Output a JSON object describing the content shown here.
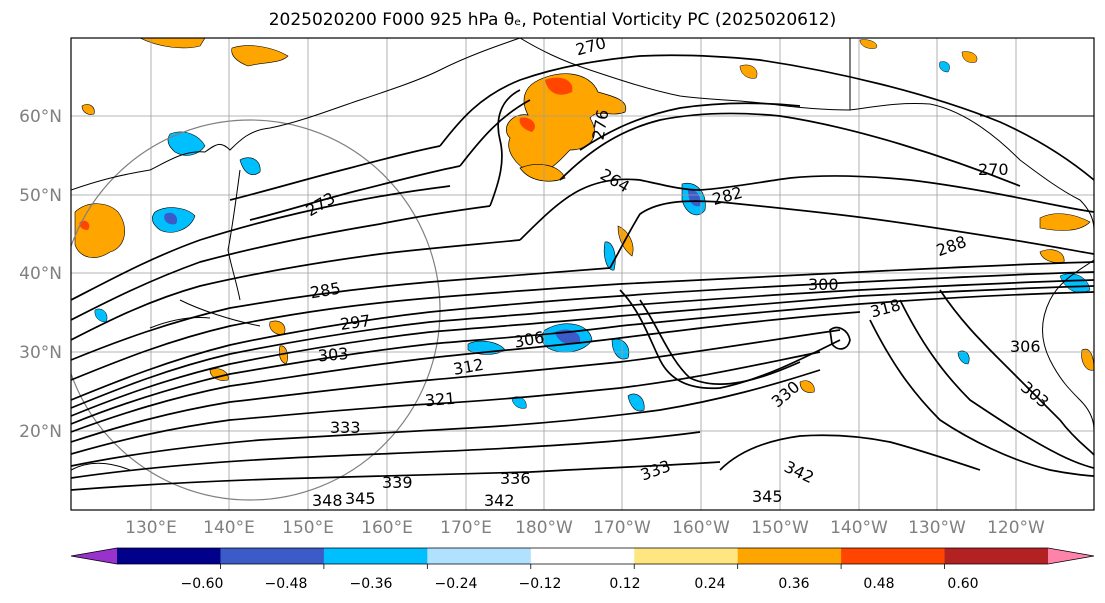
{
  "title": "2025020200 F000 925 hPa θₑ, Potential Vorticity PC (2025020612)",
  "lat_labels": [
    "20°N",
    "30°N",
    "40°N",
    "50°N",
    "60°N"
  ],
  "lon_labels": [
    "130°E",
    "140°E",
    "150°E",
    "160°E",
    "170°E",
    "180°W",
    "170°W",
    "160°W",
    "150°W",
    "140°W",
    "130°W",
    "120°W"
  ],
  "colorbar": {
    "colors": [
      "#9932cc",
      "#00008b",
      "#3a5bc8",
      "#00bfff",
      "#b0e2ff",
      "#ffffff",
      "#ffe680",
      "#ffa500",
      "#ff4500",
      "#b22222",
      "#ff82ab"
    ],
    "tick_labels": [
      "−0.60",
      "−0.48",
      "−0.36",
      "−0.24",
      "−0.12",
      "0.12",
      "0.24",
      "0.36",
      "0.48",
      "0.60"
    ]
  },
  "contour_labels": [
    "273",
    "270",
    "276",
    "264",
    "282",
    "270",
    "288",
    "285",
    "297",
    "300",
    "318",
    "306",
    "303",
    "312",
    "321",
    "333",
    "336",
    "339",
    "345",
    "348",
    "342",
    "330",
    "303",
    "306",
    "342",
    "345",
    "333"
  ]
}
